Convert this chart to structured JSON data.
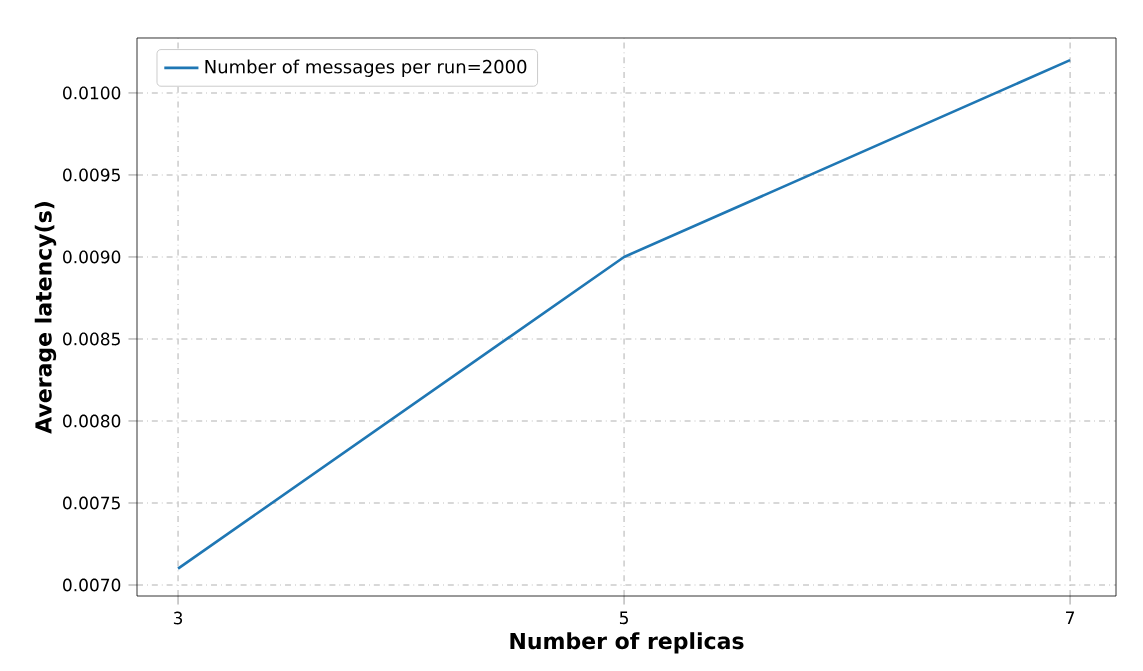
{
  "chart_data": {
    "type": "line",
    "xlabel": "Number of replicas",
    "ylabel": "Average latency(s)",
    "x": [
      3,
      5,
      7
    ],
    "series": [
      {
        "name": "Number of messages per run=2000",
        "color": "#1f77b4",
        "values": [
          0.0071,
          0.009,
          0.0102
        ]
      }
    ],
    "xlim": [
      2.816,
      7.206
    ],
    "ylim": [
      0.006933,
      0.010335
    ],
    "xticks": [
      3,
      5,
      7
    ],
    "yticks": [
      {
        "value": 0.007,
        "label": "0.0070"
      },
      {
        "value": 0.0075,
        "label": "0.0075"
      },
      {
        "value": 0.008,
        "label": "0.0080"
      },
      {
        "value": 0.0085,
        "label": "0.0085"
      },
      {
        "value": 0.009,
        "label": "0.0090"
      },
      {
        "value": 0.0095,
        "label": "0.0095"
      },
      {
        "value": 0.01,
        "label": "0.0100"
      }
    ],
    "grid": true,
    "legend": "top left",
    "marker": "none",
    "line_style": "solid"
  }
}
